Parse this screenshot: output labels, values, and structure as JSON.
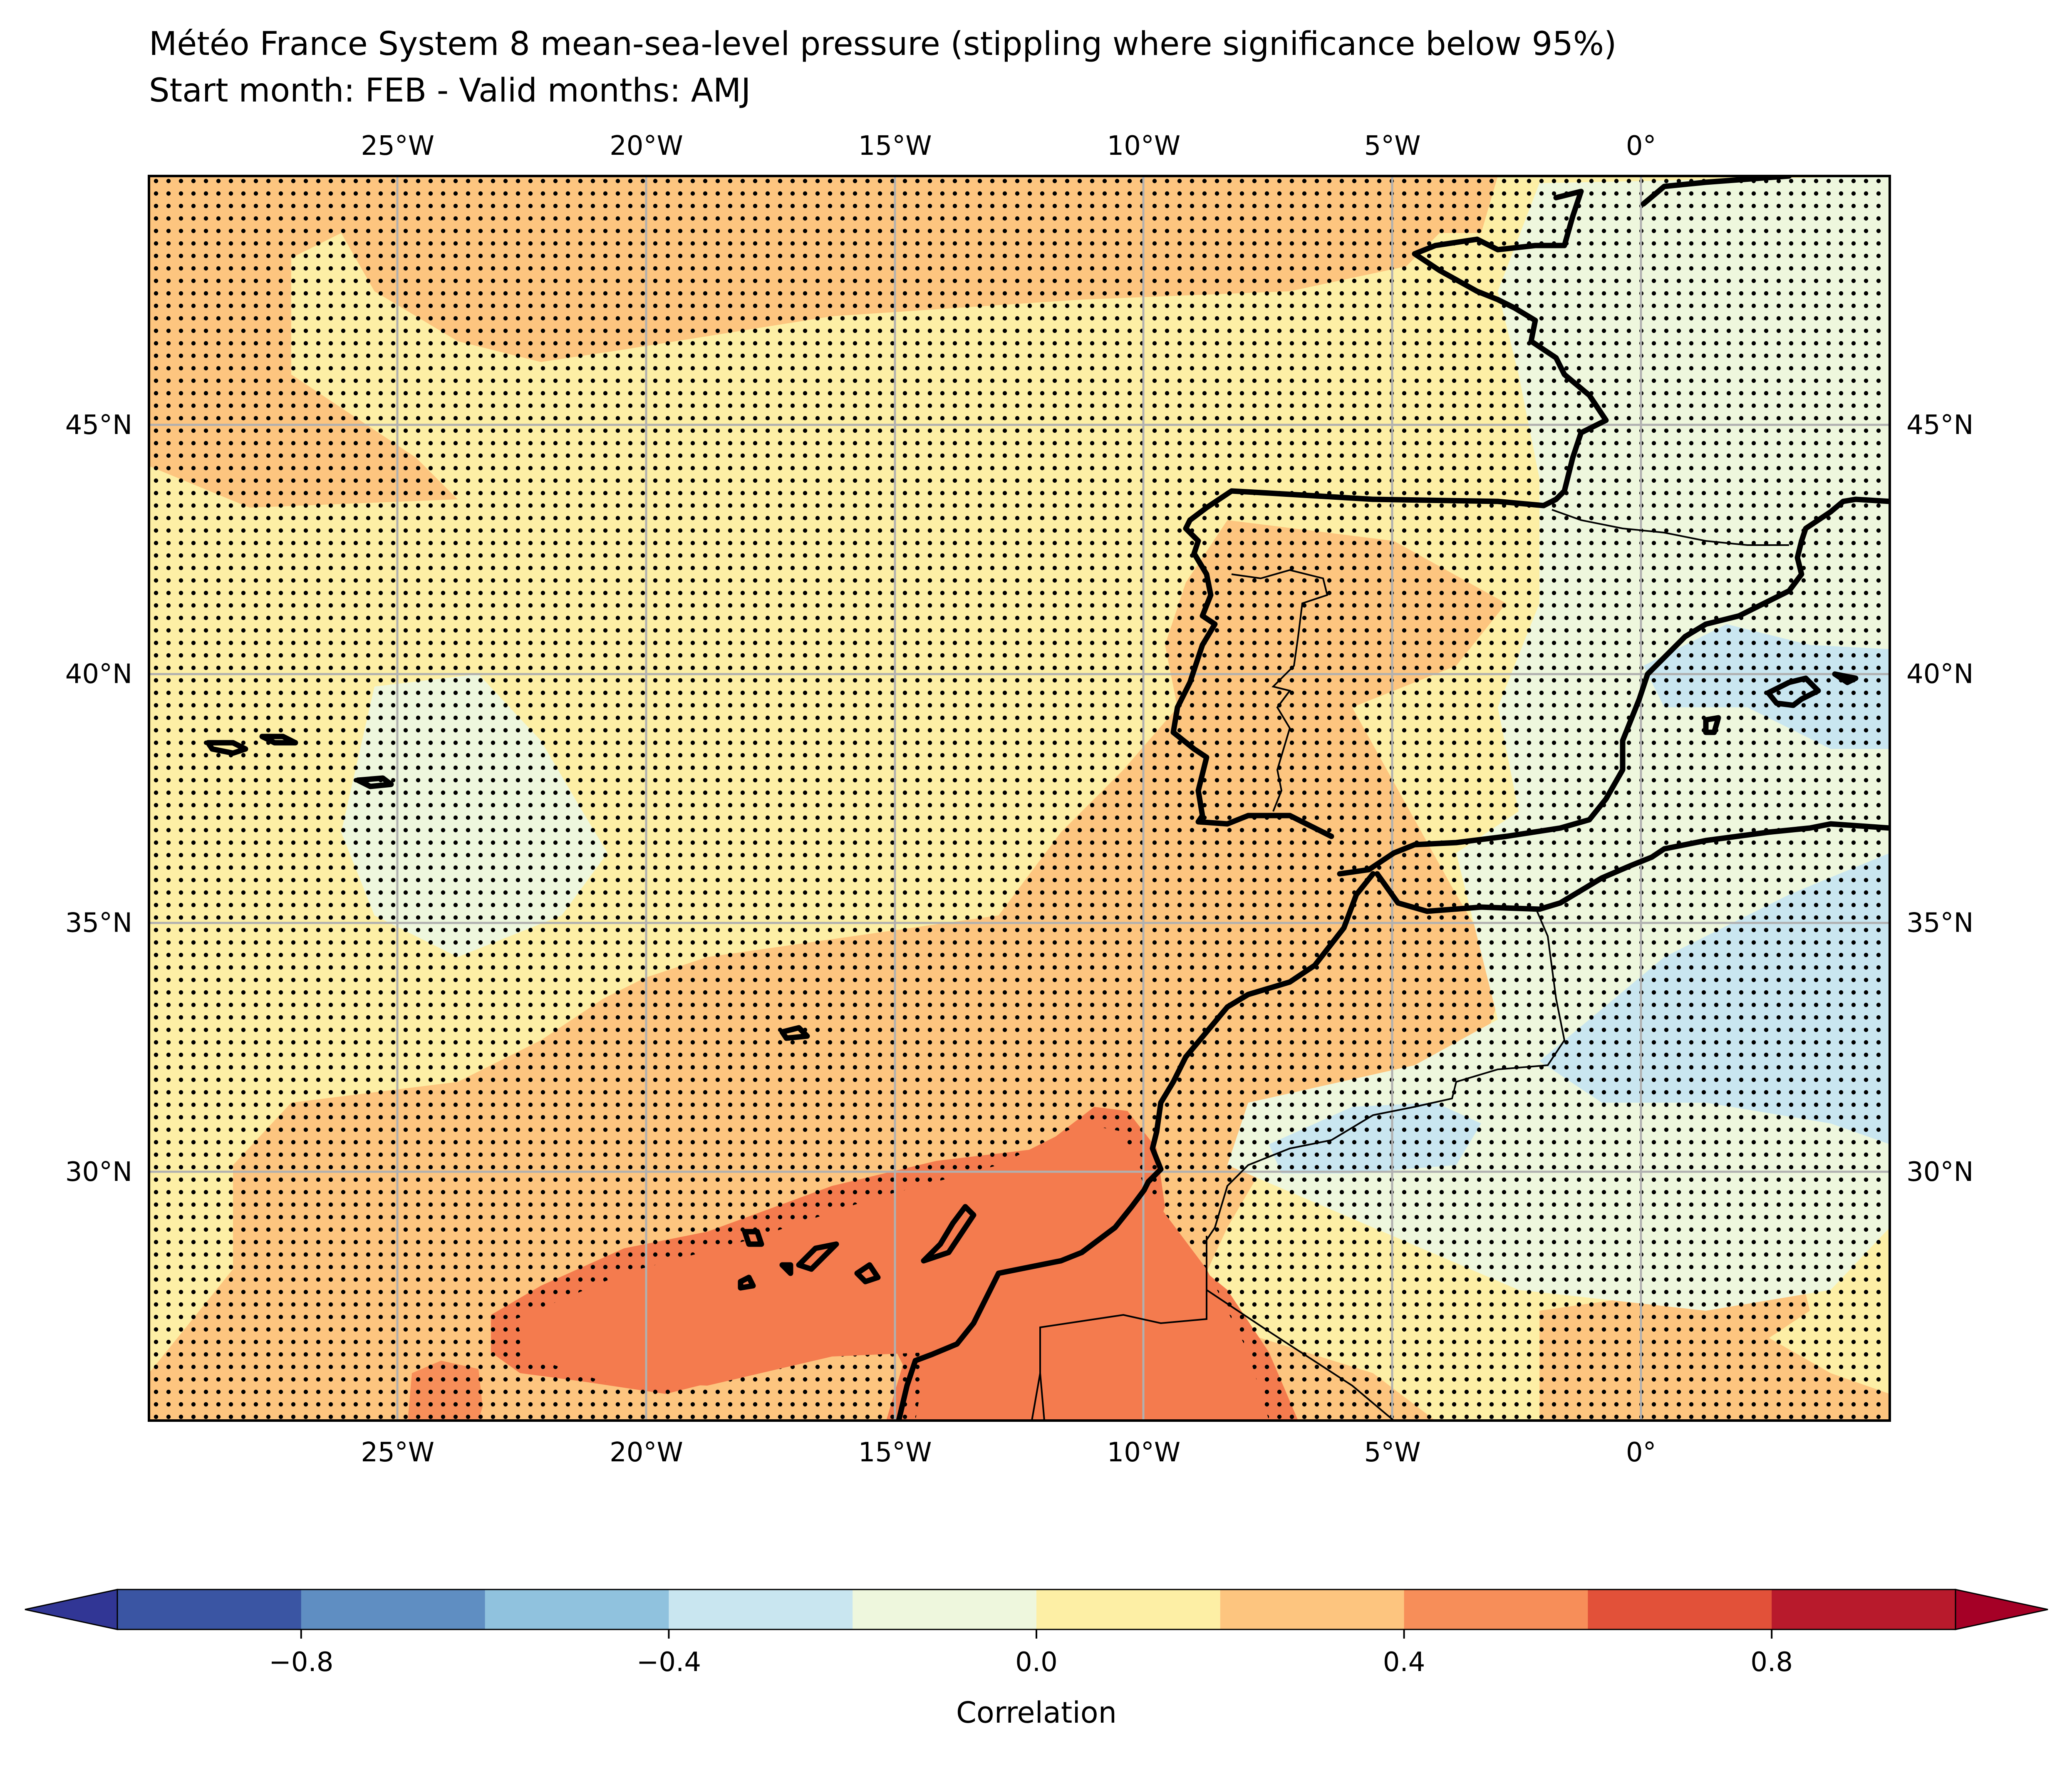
{
  "title_line1": "Météo France System 8 mean-sea-level pressure (stippling where significance below 95%)",
  "title_line2": "Start month: FEB - Valid months: AMJ",
  "lon_ticks": [
    "25°W",
    "20°W",
    "15°W",
    "10°W",
    "5°W",
    "0°"
  ],
  "lat_ticks": [
    "45°N",
    "40°N",
    "35°N",
    "30°N"
  ],
  "colorbar": {
    "label": "Correlation",
    "tick_labels": [
      "−0.8",
      "−0.4",
      "0.0",
      "0.4",
      "0.8"
    ],
    "levels": [
      -1.0,
      -0.8,
      -0.6,
      -0.4,
      -0.2,
      0.0,
      0.2,
      0.4,
      0.6,
      0.8,
      1.0
    ],
    "colors": [
      "#3a55a3",
      "#5f8ec2",
      "#90c2de",
      "#c9e6f0",
      "#eef7dd",
      "#fdefa5",
      "#fdc57f",
      "#f78e59",
      "#e25139",
      "#b81a2c"
    ],
    "under_color": "#313695",
    "over_color": "#a50026"
  },
  "map": {
    "extent": {
      "lon_min": -30,
      "lon_max": 5,
      "lat_min": 25,
      "lat_max": 50
    },
    "gridlines_lon": [
      -25,
      -20,
      -15,
      -10,
      -5,
      0
    ],
    "gridlines_lat": [
      45,
      40,
      35,
      30
    ],
    "stippling": "significance below 95%",
    "field_colors": {
      "weak_positive": "#fdefa5",
      "moderate_positive": "#fdc57f",
      "strong_positive": "#f78e59",
      "weak_negative": "#c9e6f0",
      "near_zero_negative": "#eef7dd",
      "strongest": "#f47b4e"
    }
  }
}
